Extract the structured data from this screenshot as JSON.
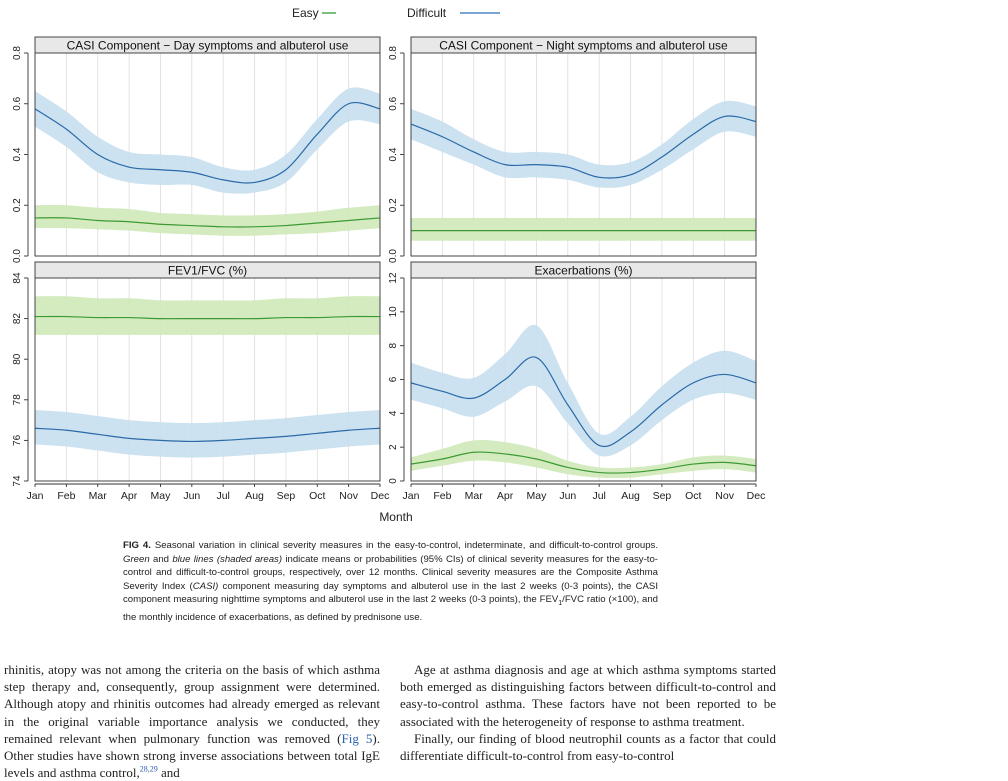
{
  "legend": {
    "items": [
      {
        "label": "Easy",
        "color": "#2e9b3a"
      },
      {
        "label": "Difficult",
        "color": "#2a6fbf"
      }
    ]
  },
  "x_axis_label": "Month",
  "colors": {
    "easy_line": "#3c9a32",
    "easy_band": "#cfe9b9",
    "difficult_line": "#2a6aa8",
    "difficult_band": "#c6dfee",
    "panel_header_bg": "#e8e8e8",
    "link": "#2a5fae"
  },
  "chart_data": [
    {
      "type": "line",
      "title": "CASI Component − Day symptoms and albuterol use",
      "x": [
        "Jan",
        "Feb",
        "Mar",
        "Apr",
        "May",
        "Jun",
        "Jul",
        "Aug",
        "Sep",
        "Oct",
        "Nov",
        "Dec"
      ],
      "ylim": [
        0,
        0.8
      ],
      "yticks": [
        0.0,
        0.2,
        0.4,
        0.6,
        0.8
      ],
      "yticklabels": [
        "0.0",
        "0.2",
        "0.4",
        "0.6",
        "0.8"
      ],
      "show_xticks": false,
      "series": [
        {
          "name": "Easy",
          "values": [
            0.15,
            0.15,
            0.14,
            0.135,
            0.125,
            0.12,
            0.115,
            0.115,
            0.12,
            0.13,
            0.14,
            0.15
          ],
          "lower": [
            0.11,
            0.11,
            0.105,
            0.1,
            0.09,
            0.085,
            0.08,
            0.08,
            0.085,
            0.09,
            0.1,
            0.11
          ],
          "upper": [
            0.2,
            0.2,
            0.19,
            0.185,
            0.17,
            0.165,
            0.16,
            0.16,
            0.165,
            0.175,
            0.19,
            0.2
          ]
        },
        {
          "name": "Difficult",
          "values": [
            0.58,
            0.5,
            0.4,
            0.35,
            0.34,
            0.33,
            0.3,
            0.29,
            0.34,
            0.48,
            0.6,
            0.58
          ],
          "lower": [
            0.51,
            0.43,
            0.33,
            0.29,
            0.28,
            0.28,
            0.25,
            0.25,
            0.29,
            0.42,
            0.53,
            0.52
          ],
          "upper": [
            0.65,
            0.57,
            0.47,
            0.41,
            0.4,
            0.39,
            0.35,
            0.34,
            0.4,
            0.54,
            0.66,
            0.64
          ]
        }
      ]
    },
    {
      "type": "line",
      "title": "CASI Component − Night symptoms and albuterol use",
      "x": [
        "Jan",
        "Feb",
        "Mar",
        "Apr",
        "May",
        "Jun",
        "Jul",
        "Aug",
        "Sep",
        "Oct",
        "Nov",
        "Dec"
      ],
      "ylim": [
        0,
        0.8
      ],
      "yticks": [
        0.0,
        0.2,
        0.4,
        0.6,
        0.8
      ],
      "yticklabels": [
        "0.0",
        "0.2",
        "0.4",
        "0.6",
        "0.8"
      ],
      "show_xticks": false,
      "series": [
        {
          "name": "Easy",
          "values": [
            0.1,
            0.1,
            0.1,
            0.1,
            0.1,
            0.1,
            0.1,
            0.1,
            0.1,
            0.1,
            0.1,
            0.1
          ],
          "lower": [
            0.06,
            0.06,
            0.06,
            0.06,
            0.06,
            0.06,
            0.06,
            0.06,
            0.06,
            0.06,
            0.06,
            0.06
          ],
          "upper": [
            0.15,
            0.15,
            0.15,
            0.15,
            0.15,
            0.15,
            0.15,
            0.15,
            0.15,
            0.15,
            0.15,
            0.15
          ]
        },
        {
          "name": "Difficult",
          "values": [
            0.52,
            0.47,
            0.41,
            0.36,
            0.36,
            0.35,
            0.31,
            0.32,
            0.39,
            0.48,
            0.55,
            0.53
          ],
          "lower": [
            0.46,
            0.41,
            0.36,
            0.31,
            0.31,
            0.3,
            0.27,
            0.28,
            0.34,
            0.42,
            0.49,
            0.47
          ],
          "upper": [
            0.58,
            0.53,
            0.46,
            0.41,
            0.41,
            0.4,
            0.36,
            0.37,
            0.44,
            0.54,
            0.61,
            0.59
          ]
        }
      ]
    },
    {
      "type": "line",
      "title": "FEV1/FVC (%)",
      "x": [
        "Jan",
        "Feb",
        "Mar",
        "Apr",
        "May",
        "Jun",
        "Jul",
        "Aug",
        "Sep",
        "Oct",
        "Nov",
        "Dec"
      ],
      "ylim": [
        74,
        84
      ],
      "yticks": [
        74,
        76,
        78,
        80,
        82,
        84
      ],
      "yticklabels": [
        "74",
        "76",
        "78",
        "80",
        "82",
        "84"
      ],
      "show_xticks": true,
      "series": [
        {
          "name": "Easy",
          "values": [
            82.1,
            82.1,
            82.05,
            82.05,
            82.0,
            82.0,
            82.0,
            82.0,
            82.05,
            82.05,
            82.1,
            82.1
          ],
          "lower": [
            81.2,
            81.2,
            81.2,
            81.2,
            81.2,
            81.2,
            81.2,
            81.2,
            81.2,
            81.2,
            81.2,
            81.2
          ],
          "upper": [
            83.1,
            83.1,
            83.0,
            83.0,
            82.9,
            82.9,
            82.9,
            82.9,
            83.0,
            83.0,
            83.1,
            83.1
          ]
        },
        {
          "name": "Difficult",
          "values": [
            76.6,
            76.5,
            76.3,
            76.1,
            76.0,
            75.95,
            76.0,
            76.1,
            76.2,
            76.35,
            76.5,
            76.6
          ],
          "lower": [
            75.8,
            75.7,
            75.5,
            75.3,
            75.2,
            75.15,
            75.2,
            75.3,
            75.4,
            75.55,
            75.7,
            75.8
          ],
          "upper": [
            77.5,
            77.4,
            77.2,
            77.0,
            76.9,
            76.85,
            76.9,
            77.0,
            77.1,
            77.25,
            77.4,
            77.5
          ]
        }
      ]
    },
    {
      "type": "line",
      "title": "Exacerbations (%)",
      "x": [
        "Jan",
        "Feb",
        "Mar",
        "Apr",
        "May",
        "Jun",
        "Jul",
        "Aug",
        "Sep",
        "Oct",
        "Nov",
        "Dec"
      ],
      "ylim": [
        0,
        12
      ],
      "yticks": [
        0,
        2,
        4,
        6,
        8,
        10,
        12
      ],
      "yticklabels": [
        "0",
        "2",
        "4",
        "6",
        "8",
        "10",
        "12"
      ],
      "show_xticks": true,
      "series": [
        {
          "name": "Easy",
          "values": [
            1.0,
            1.3,
            1.7,
            1.6,
            1.3,
            0.8,
            0.5,
            0.5,
            0.7,
            1.0,
            1.1,
            0.9
          ],
          "lower": [
            0.6,
            0.9,
            1.2,
            1.1,
            0.8,
            0.4,
            0.2,
            0.2,
            0.4,
            0.6,
            0.7,
            0.5
          ],
          "upper": [
            1.4,
            1.9,
            2.4,
            2.3,
            1.9,
            1.2,
            0.8,
            0.8,
            1.0,
            1.4,
            1.5,
            1.3
          ]
        },
        {
          "name": "Difficult",
          "values": [
            5.8,
            5.3,
            4.9,
            6.0,
            7.3,
            4.5,
            2.1,
            2.9,
            4.5,
            5.8,
            6.3,
            5.8
          ],
          "lower": [
            4.8,
            4.3,
            3.8,
            4.7,
            5.6,
            3.4,
            1.5,
            2.1,
            3.6,
            4.8,
            5.2,
            4.8
          ],
          "upper": [
            7.0,
            6.4,
            6.1,
            7.5,
            9.2,
            5.8,
            2.8,
            3.8,
            5.6,
            7.0,
            7.7,
            7.1
          ]
        }
      ]
    }
  ],
  "caption": {
    "fig_label": "FIG 4.",
    "part1": " Seasonal variation in clinical severity measures in the easy-to-control, indeterminate, and difficult-to-control groups. ",
    "italic1": "Green",
    "part2": " and ",
    "italic2": "blue lines (shaded areas)",
    "part3": " indicate means or probabilities (95% CIs) of clinical severity measures for the easy-to-control and difficult-to-control groups, respectively, over 12 months. Clinical severity measures are the Composite Asthma Severity Index (",
    "italic3": "CASI)",
    "part4": " component measuring day symptoms and albuterol use in the last 2 weeks (0-3 points), the CASI component measuring nighttime symptoms and albuterol use in the last 2 weeks (0-3 points), the FEV",
    "sub1": "1",
    "part5": "/FVC ratio (×100), and the monthly incidence of exacerbations, as defined by prednisone use."
  },
  "left_column": {
    "text1": "rhinitis, atopy was not among the criteria on the basis of which asthma step therapy and, consequently, group assignment were determined. Although atopy and rhinitis outcomes had already emerged as relevant in the original variable importance analysis we conducted, they remained relevant when pulmonary function was removed (",
    "link1": "Fig 5",
    "text2": "). Other studies have shown strong inverse associations between total IgE levels and asthma control,",
    "ref1": "28,29",
    "text3": " and"
  },
  "right_column": {
    "para1": "Age at asthma diagnosis and age at which asthma symptoms started both emerged as distinguishing factors between difficult-to-control and easy-to-control asthma. These factors have not been reported to be associated with the heterogeneity of response to asthma treatment.",
    "para2": "Finally, our finding of blood neutrophil counts as a factor that could differentiate difficult-to-control from easy-to-control"
  }
}
